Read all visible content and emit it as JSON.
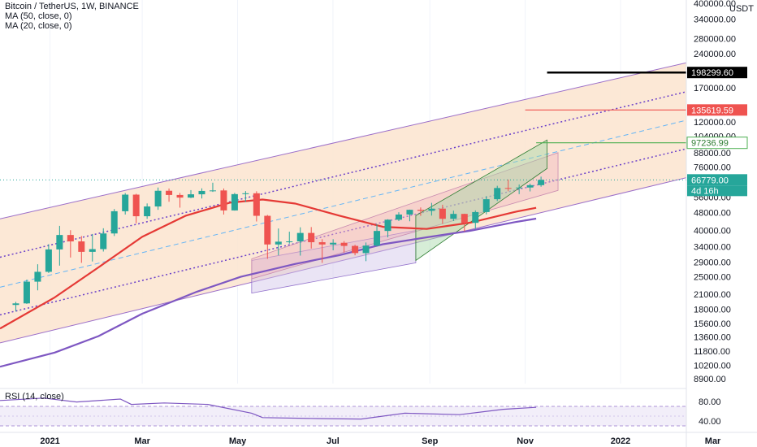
{
  "header": {
    "symbol_line": "Bitcoin / TetherUS, 1W, BINANCE",
    "ma50_line": "MA (50, close, 0)",
    "ma20_line": "MA (20, close, 0)",
    "currency": "USDT"
  },
  "rsi": {
    "label": "RSI (14, close)",
    "ticks": [
      "80.00",
      "40.00"
    ],
    "upper_band": 70,
    "lower_band": 30
  },
  "colors": {
    "up": "#26a69a",
    "down": "#ef5350",
    "ma20": "#e53935",
    "ma50": "#7e57c2",
    "channel_fill": "#fce4cf",
    "channel_line": "#9c6fc9",
    "level_black": "#000000",
    "level_red": "#ef5350",
    "level_green": "#4caf50",
    "last_price_tag": "#26a69a"
  },
  "chart_data": {
    "type": "candlestick",
    "scale": "log",
    "y_ticks": [
      "400000.00",
      "340000.00",
      "280000.00",
      "240000.00",
      "170000.00",
      "120000.00",
      "104000.00",
      "88000.00",
      "76000.00",
      "56000.00",
      "48000.00",
      "40000.00",
      "34000.00",
      "29000.00",
      "25000.00",
      "21000.00",
      "18000.00",
      "15600.00",
      "13600.00",
      "11800.00",
      "10200.00",
      "8900.00"
    ],
    "x_ticks": [
      {
        "label": "2021",
        "date": "2021-01-01"
      },
      {
        "label": "Mar",
        "date": "2021-03-01"
      },
      {
        "label": "May",
        "date": "2021-05-01"
      },
      {
        "label": "Jul",
        "date": "2021-07-01"
      },
      {
        "label": "Sep",
        "date": "2021-09-01"
      },
      {
        "label": "Nov",
        "date": "2021-11-01"
      },
      {
        "label": "2022",
        "date": "2022-01-01"
      },
      {
        "label": "Mar",
        "date": "2022-03-01"
      }
    ],
    "price_tags": [
      {
        "label": "198299.60",
        "value": 198299.6,
        "style": "black"
      },
      {
        "label": "135619.59",
        "value": 135619.59,
        "style": "red"
      },
      {
        "label": "97236.99",
        "value": 97236.99,
        "style": "green"
      },
      {
        "label": "66779.00",
        "value": 66779,
        "style": "last"
      }
    ],
    "countdown": "4d 16h",
    "candles": [
      {
        "date": "2020-12-07",
        "o": 18800,
        "h": 19400,
        "l": 17600,
        "c": 19100
      },
      {
        "date": "2020-12-14",
        "o": 19100,
        "h": 24300,
        "l": 19000,
        "c": 23800
      },
      {
        "date": "2020-12-21",
        "o": 23800,
        "h": 28400,
        "l": 21800,
        "c": 26300
      },
      {
        "date": "2020-12-28",
        "o": 26300,
        "h": 34800,
        "l": 26000,
        "c": 33000
      },
      {
        "date": "2021-01-04",
        "o": 33000,
        "h": 41900,
        "l": 28000,
        "c": 38200
      },
      {
        "date": "2021-01-11",
        "o": 38200,
        "h": 40100,
        "l": 30400,
        "c": 35800
      },
      {
        "date": "2021-01-18",
        "o": 35800,
        "h": 37800,
        "l": 28800,
        "c": 32200
      },
      {
        "date": "2021-01-25",
        "o": 32200,
        "h": 38600,
        "l": 29200,
        "c": 33100
      },
      {
        "date": "2021-02-01",
        "o": 33100,
        "h": 40900,
        "l": 32300,
        "c": 38800
      },
      {
        "date": "2021-02-08",
        "o": 38800,
        "h": 49700,
        "l": 37800,
        "c": 48600
      },
      {
        "date": "2021-02-15",
        "o": 48600,
        "h": 58400,
        "l": 47000,
        "c": 57500
      },
      {
        "date": "2021-02-22",
        "o": 57500,
        "h": 58000,
        "l": 43000,
        "c": 46200
      },
      {
        "date": "2021-03-01",
        "o": 46200,
        "h": 52600,
        "l": 45000,
        "c": 51000
      },
      {
        "date": "2021-03-08",
        "o": 51000,
        "h": 61800,
        "l": 49300,
        "c": 59800
      },
      {
        "date": "2021-03-15",
        "o": 59800,
        "h": 61200,
        "l": 53500,
        "c": 57300
      },
      {
        "date": "2021-03-22",
        "o": 57300,
        "h": 58500,
        "l": 50400,
        "c": 55800
      },
      {
        "date": "2021-03-29",
        "o": 55800,
        "h": 60200,
        "l": 55500,
        "c": 57700
      },
      {
        "date": "2021-04-05",
        "o": 57700,
        "h": 61300,
        "l": 55300,
        "c": 59700
      },
      {
        "date": "2021-04-12",
        "o": 59700,
        "h": 64900,
        "l": 59100,
        "c": 60000
      },
      {
        "date": "2021-04-19",
        "o": 60000,
        "h": 61200,
        "l": 47000,
        "c": 49000
      },
      {
        "date": "2021-04-26",
        "o": 49000,
        "h": 58500,
        "l": 48900,
        "c": 57800
      },
      {
        "date": "2021-05-03",
        "o": 57800,
        "h": 59600,
        "l": 53400,
        "c": 58300
      },
      {
        "date": "2021-05-10",
        "o": 58300,
        "h": 59500,
        "l": 43800,
        "c": 46400
      },
      {
        "date": "2021-05-17",
        "o": 46400,
        "h": 46800,
        "l": 30000,
        "c": 34700
      },
      {
        "date": "2021-05-24",
        "o": 34700,
        "h": 40800,
        "l": 31100,
        "c": 35700
      },
      {
        "date": "2021-05-31",
        "o": 35700,
        "h": 39500,
        "l": 35000,
        "c": 35800
      },
      {
        "date": "2021-06-07",
        "o": 35800,
        "h": 41300,
        "l": 31000,
        "c": 39000
      },
      {
        "date": "2021-06-14",
        "o": 39000,
        "h": 41400,
        "l": 33300,
        "c": 35500
      },
      {
        "date": "2021-06-21",
        "o": 35500,
        "h": 36600,
        "l": 28800,
        "c": 34700
      },
      {
        "date": "2021-06-28",
        "o": 34700,
        "h": 36600,
        "l": 32700,
        "c": 35300
      },
      {
        "date": "2021-07-05",
        "o": 35300,
        "h": 35900,
        "l": 32000,
        "c": 34200
      },
      {
        "date": "2021-07-12",
        "o": 34200,
        "h": 34600,
        "l": 31100,
        "c": 31800
      },
      {
        "date": "2021-07-19",
        "o": 31800,
        "h": 35400,
        "l": 29300,
        "c": 34300
      },
      {
        "date": "2021-07-26",
        "o": 34300,
        "h": 42600,
        "l": 34000,
        "c": 39800
      },
      {
        "date": "2021-08-02",
        "o": 39800,
        "h": 44800,
        "l": 37300,
        "c": 44600
      },
      {
        "date": "2021-08-09",
        "o": 44600,
        "h": 48100,
        "l": 44000,
        "c": 47000
      },
      {
        "date": "2021-08-16",
        "o": 47000,
        "h": 49400,
        "l": 43900,
        "c": 49300
      },
      {
        "date": "2021-08-23",
        "o": 49300,
        "h": 50500,
        "l": 46400,
        "c": 48800
      },
      {
        "date": "2021-08-30",
        "o": 48800,
        "h": 52900,
        "l": 46500,
        "c": 49900
      },
      {
        "date": "2021-09-06",
        "o": 49900,
        "h": 51900,
        "l": 42800,
        "c": 45000
      },
      {
        "date": "2021-09-13",
        "o": 45000,
        "h": 48900,
        "l": 44000,
        "c": 47300
      },
      {
        "date": "2021-09-20",
        "o": 47300,
        "h": 47400,
        "l": 39600,
        "c": 43200
      },
      {
        "date": "2021-09-27",
        "o": 43200,
        "h": 49000,
        "l": 40700,
        "c": 48200
      },
      {
        "date": "2021-10-04",
        "o": 48200,
        "h": 56600,
        "l": 47100,
        "c": 54900
      },
      {
        "date": "2021-10-11",
        "o": 54900,
        "h": 62900,
        "l": 53900,
        "c": 61500
      },
      {
        "date": "2021-10-18",
        "o": 61500,
        "h": 67000,
        "l": 59500,
        "c": 61300
      },
      {
        "date": "2021-10-25",
        "o": 61300,
        "h": 63700,
        "l": 57800,
        "c": 61800
      },
      {
        "date": "2021-11-01",
        "o": 61800,
        "h": 64300,
        "l": 59400,
        "c": 63300
      },
      {
        "date": "2021-11-08",
        "o": 63300,
        "h": 69000,
        "l": 62300,
        "c": 66779
      }
    ],
    "ma20": [
      {
        "date": "2020-11-30",
        "v": 14800
      },
      {
        "date": "2021-01-04",
        "v": 20300
      },
      {
        "date": "2021-02-01",
        "v": 27500
      },
      {
        "date": "2021-03-01",
        "v": 37500
      },
      {
        "date": "2021-03-29",
        "v": 46500
      },
      {
        "date": "2021-04-26",
        "v": 53000
      },
      {
        "date": "2021-05-17",
        "v": 54700
      },
      {
        "date": "2021-06-07",
        "v": 52500
      },
      {
        "date": "2021-07-05",
        "v": 46500
      },
      {
        "date": "2021-08-02",
        "v": 41500
      },
      {
        "date": "2021-08-30",
        "v": 40600
      },
      {
        "date": "2021-09-27",
        "v": 43300
      },
      {
        "date": "2021-10-25",
        "v": 48200
      },
      {
        "date": "2021-11-08",
        "v": 50300
      }
    ],
    "ma50": [
      {
        "date": "2020-11-30",
        "v": 10050
      },
      {
        "date": "2021-01-04",
        "v": 11600
      },
      {
        "date": "2021-02-01",
        "v": 13700
      },
      {
        "date": "2021-03-01",
        "v": 17200
      },
      {
        "date": "2021-04-05",
        "v": 21500
      },
      {
        "date": "2021-05-03",
        "v": 25000
      },
      {
        "date": "2021-06-07",
        "v": 28500
      },
      {
        "date": "2021-07-05",
        "v": 31100
      },
      {
        "date": "2021-08-02",
        "v": 34800
      },
      {
        "date": "2021-08-30",
        "v": 37300
      },
      {
        "date": "2021-09-27",
        "v": 39900
      },
      {
        "date": "2021-10-25",
        "v": 43500
      },
      {
        "date": "2021-11-08",
        "v": 45100
      }
    ],
    "rsi_series": [
      {
        "date": "2020-11-30",
        "v": 82
      },
      {
        "date": "2020-12-28",
        "v": 87
      },
      {
        "date": "2021-01-18",
        "v": 79
      },
      {
        "date": "2021-02-15",
        "v": 85
      },
      {
        "date": "2021-02-22",
        "v": 74
      },
      {
        "date": "2021-03-15",
        "v": 77
      },
      {
        "date": "2021-04-12",
        "v": 74
      },
      {
        "date": "2021-05-10",
        "v": 56
      },
      {
        "date": "2021-05-17",
        "v": 47
      },
      {
        "date": "2021-06-21",
        "v": 45
      },
      {
        "date": "2021-07-19",
        "v": 44
      },
      {
        "date": "2021-08-16",
        "v": 56
      },
      {
        "date": "2021-09-20",
        "v": 53
      },
      {
        "date": "2021-10-18",
        "v": 64
      },
      {
        "date": "2021-11-08",
        "v": 68
      }
    ],
    "drawings": {
      "channel": {
        "start_date": "2020-11-30",
        "end_date": "2022-04-01",
        "top": [
          45000,
          260000
        ],
        "upper_mid": [
          30500,
          196000
        ],
        "mid": [
          22500,
          147000
        ],
        "lower_mid": [
          17000,
          110000
        ],
        "bottom": [
          12800,
          82000
        ]
      },
      "levels": [
        {
          "value": 198299.6,
          "from": "2021-11-15",
          "style": "black"
        },
        {
          "value": 135619.59,
          "from": "2021-11-01",
          "style": "red"
        },
        {
          "value": 97236.99,
          "from": "2021-11-08",
          "style": "green"
        }
      ],
      "purple_channel": {
        "start": "2021-05-10",
        "end": "2021-08-23",
        "top_start": 29500,
        "top_end": 40000,
        "bot_start": 21200,
        "bot_end": 28800
      },
      "pink_channel": {
        "start": "2021-05-10",
        "end": "2021-11-22",
        "top_start": 30000,
        "top_end": 88000,
        "bot_start": 24500,
        "bot_end": 60000
      },
      "green_flag": {
        "start": "2021-08-23",
        "end": "2021-11-15",
        "top_start": 46500,
        "top_end": 100000,
        "bot_start": 29500,
        "bot_end": 75000
      },
      "last_price_line": 66779
    }
  }
}
